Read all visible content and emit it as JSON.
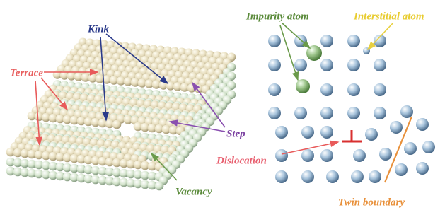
{
  "surface_panel": {
    "labels": {
      "kink": "Kink",
      "terrace": "Terrace",
      "step": "Step",
      "vacancy": "Vacancy"
    }
  },
  "crystal_panel": {
    "labels": {
      "impurity": "Impurity atom",
      "interstitial": "Interstitial atom",
      "dislocation": "Dislocation",
      "twin": "Twin boundary"
    }
  }
}
